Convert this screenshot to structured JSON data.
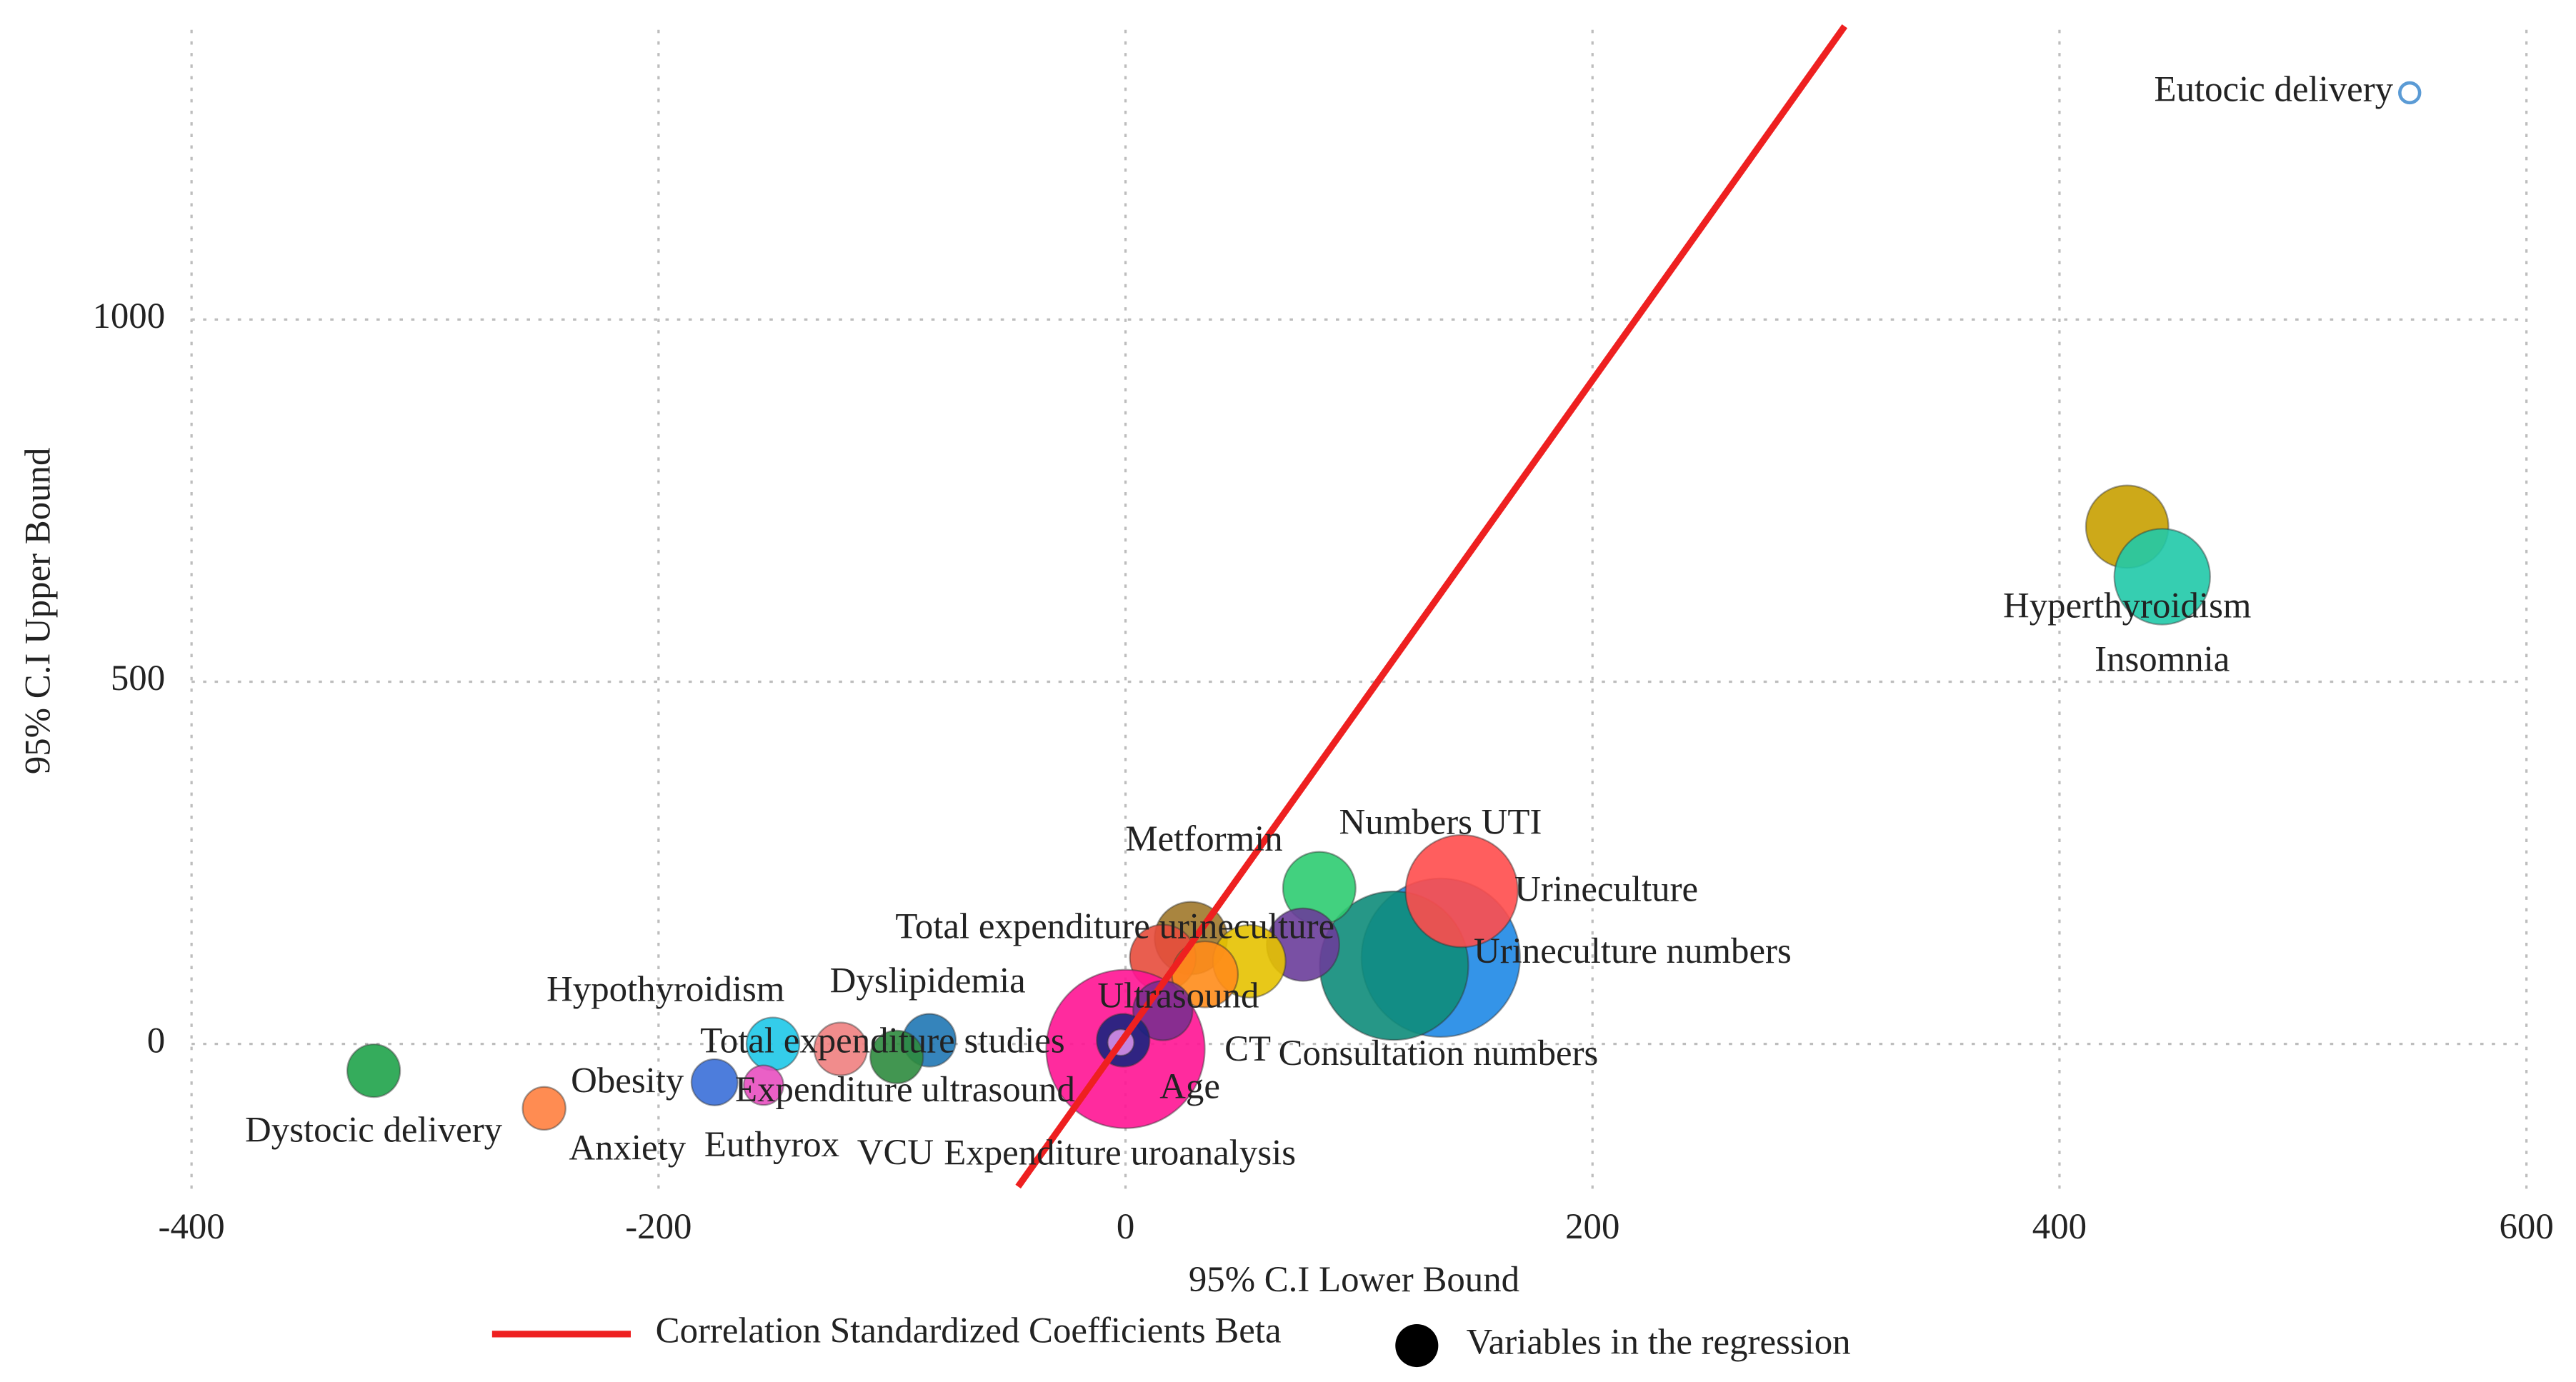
{
  "chart_data": {
    "type": "bubble",
    "xlabel": "95% C.I Lower Bound",
    "ylabel": "95% C.I Upper Bound",
    "xlim": [
      -400,
      600
    ],
    "xticks": [
      -400,
      -200,
      0,
      200,
      400,
      600
    ],
    "ylim": [
      -200,
      1400
    ],
    "yticks": [
      0,
      500,
      1000
    ],
    "grid": true,
    "fit_line": {
      "name": "Correlation Standardized Coefficients Beta",
      "color": "#ee2020",
      "x": [
        -46,
        308
      ],
      "values": [
        -197,
        1405
      ]
    },
    "points_legend": "Variables in the regression",
    "series": [
      {
        "name": "Eutocic delivery",
        "color": "#5b9bd5",
        "hollow": true,
        "x": [
          550
        ],
        "values": [
          1313
        ],
        "size": [
          6
        ]
      },
      {
        "name": "Hyperthyroidism",
        "color": "#c8a000",
        "x": [
          429
        ],
        "values": [
          714
        ],
        "size": [
          25
        ]
      },
      {
        "name": "Insomnia",
        "color": "#20c9a8",
        "x": [
          444
        ],
        "values": [
          645
        ],
        "size": [
          29
        ]
      },
      {
        "name": "Urineculture numbers",
        "color": "#1e88e5",
        "x": [
          135
        ],
        "values": [
          119
        ],
        "size": [
          48
        ]
      },
      {
        "name": "Consultation numbers",
        "color": "#0e8c7a",
        "x": [
          115
        ],
        "values": [
          108
        ],
        "size": [
          45
        ]
      },
      {
        "name": "Urineculture",
        "color": "#ff4d4d",
        "x": [
          144
        ],
        "values": [
          211
        ],
        "size": [
          34
        ]
      },
      {
        "name": "Numbers UTI",
        "color": "#2ecc71",
        "x": [
          83
        ],
        "values": [
          215
        ],
        "size": [
          22
        ]
      },
      {
        "name": null,
        "color": "#6a3d9a",
        "x": [
          76
        ],
        "values": [
          137
        ],
        "size": [
          22
        ]
      },
      {
        "name": "Metformin",
        "color": "#a0782a",
        "x": [
          28
        ],
        "values": [
          146
        ],
        "size": [
          22
        ]
      },
      {
        "name": "CT",
        "color": "#e6c200",
        "x": [
          53
        ],
        "values": [
          114
        ],
        "size": [
          22
        ]
      },
      {
        "name": "Total expenditure urineculture",
        "color": "#e74c3c",
        "x": [
          16
        ],
        "values": [
          119
        ],
        "size": [
          20
        ]
      },
      {
        "name": "Ultrasound",
        "color": "#ff8c1a",
        "x": [
          34
        ],
        "values": [
          96
        ],
        "size": [
          20
        ]
      },
      {
        "name": "Expenditure uroanalysis",
        "color": "#ff1493",
        "x": [
          0
        ],
        "values": [
          -7
        ],
        "size": [
          48
        ]
      },
      {
        "name": "Age",
        "color": "#7b2d8e",
        "x": [
          16
        ],
        "values": [
          46
        ],
        "size": [
          18
        ]
      },
      {
        "name": "Expenditure ultrasound",
        "color": "#1a237e",
        "x": [
          -1
        ],
        "values": [
          5
        ],
        "size": [
          16
        ]
      },
      {
        "name": null,
        "color": "#d58fe8",
        "x": [
          -2
        ],
        "values": [
          2
        ],
        "size": [
          8
        ]
      },
      {
        "name": "Hypothyroidism",
        "color": "#1ec8e8",
        "x": [
          -151
        ],
        "values": [
          0
        ],
        "size": [
          16
        ]
      },
      {
        "name": "Total expenditure studies",
        "color": "#f08080",
        "x": [
          -122
        ],
        "values": [
          -7
        ],
        "size": [
          16
        ]
      },
      {
        "name": "Dyslipidemia",
        "color": "#1f77b4",
        "x": [
          -84
        ],
        "values": [
          5
        ],
        "size": [
          16
        ]
      },
      {
        "name": "VCU",
        "color": "#2e8b3e",
        "x": [
          -98
        ],
        "values": [
          -18
        ],
        "size": [
          16
        ]
      },
      {
        "name": "Euthyrox",
        "color": "#e84fc0",
        "x": [
          -155
        ],
        "values": [
          -57
        ],
        "size": [
          12
        ]
      },
      {
        "name": "Obesity",
        "color": "#3a6fd8",
        "x": [
          -176
        ],
        "values": [
          -53
        ],
        "size": [
          14
        ]
      },
      {
        "name": "Anxiety",
        "color": "#ff7f3f",
        "x": [
          -249
        ],
        "values": [
          -89
        ],
        "size": [
          13
        ]
      },
      {
        "name": "Dystocic delivery",
        "color": "#1fa34a",
        "x": [
          -322
        ],
        "values": [
          -37
        ],
        "size": [
          16
        ]
      }
    ]
  }
}
